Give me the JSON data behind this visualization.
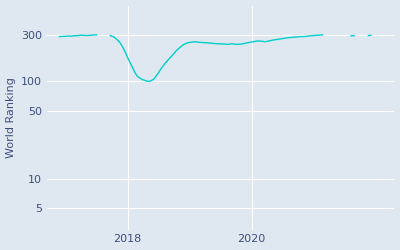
{
  "ylabel": "World Ranking",
  "line_color": "#00cfcc",
  "background_color": "#dfe8f0",
  "fig_facecolor": "#dfe8f0",
  "yticks": [
    5,
    10,
    50,
    100,
    300
  ],
  "ylim_low": 3,
  "ylim_high": 600,
  "xlim_low": 2016.7,
  "xlim_high": 2022.3,
  "xticks": [
    2018,
    2020
  ],
  "xtick_labels": [
    "2018",
    "2020"
  ],
  "segments": [
    {
      "x": [
        2016.9,
        2017.0,
        2017.05,
        2017.1,
        2017.15,
        2017.2,
        2017.25,
        2017.3,
        2017.35,
        2017.4,
        2017.45,
        2017.5
      ],
      "y": [
        288,
        290,
        292,
        291,
        294,
        295,
        298,
        296,
        295,
        297,
        299,
        300
      ]
    },
    {
      "x": [
        2017.72,
        2017.78,
        2017.83,
        2017.88,
        2017.92,
        2017.96,
        2018.0,
        2018.04,
        2018.08,
        2018.12,
        2018.16,
        2018.2,
        2018.24,
        2018.28,
        2018.32,
        2018.36,
        2018.42,
        2018.48,
        2018.54,
        2018.6,
        2018.66,
        2018.72,
        2018.78,
        2018.84,
        2018.9,
        2018.96,
        2019.02,
        2019.08,
        2019.15,
        2019.22,
        2019.3,
        2019.38,
        2019.46,
        2019.54,
        2019.62,
        2019.68,
        2019.74,
        2019.8,
        2019.86,
        2019.92,
        2019.98,
        2020.04,
        2020.1,
        2020.16,
        2020.22,
        2020.28,
        2020.34,
        2020.42,
        2020.5,
        2020.58,
        2020.65,
        2020.72,
        2020.78,
        2020.84,
        2020.9,
        2020.96,
        2021.02,
        2021.08,
        2021.14
      ],
      "y": [
        295,
        285,
        268,
        248,
        225,
        200,
        175,
        155,
        138,
        122,
        112,
        108,
        104,
        102,
        100,
        100,
        105,
        118,
        135,
        152,
        168,
        185,
        205,
        222,
        238,
        248,
        252,
        255,
        252,
        250,
        248,
        245,
        243,
        242,
        240,
        243,
        240,
        240,
        243,
        248,
        252,
        256,
        260,
        258,
        255,
        260,
        265,
        270,
        275,
        280,
        283,
        285,
        288,
        288,
        291,
        294,
        296,
        298,
        300
      ]
    },
    {
      "x": [
        2021.6,
        2021.65
      ],
      "y": [
        293,
        295
      ]
    },
    {
      "x": [
        2021.88,
        2021.92
      ],
      "y": [
        295,
        297
      ]
    }
  ]
}
